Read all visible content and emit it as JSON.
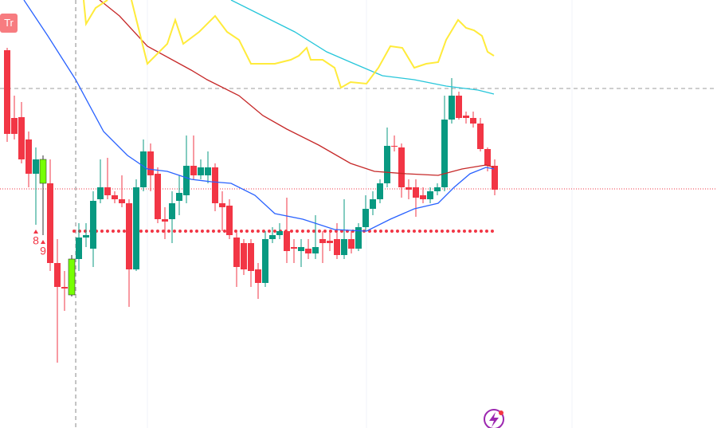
{
  "chart_data": {
    "type": "candlestick",
    "badge": "Tr",
    "xlim": [
      -1,
      99
    ],
    "ylim": [
      0,
      537
    ],
    "up_color": "#089981",
    "down_color": "#f23645",
    "highlight_indices": [
      5,
      9
    ],
    "highlight_color": "#76ff03",
    "open": [
      474,
      389,
      390,
      362,
      319,
      307,
      307,
      207,
      177,
      167,
      212,
      239,
      225,
      287,
      302,
      292,
      287,
      282,
      199,
      302,
      347,
      319,
      262,
      262,
      285,
      292,
      329,
      317,
      317,
      327,
      282,
      279,
      239,
      232,
      232,
      199,
      182,
      237,
      242,
      247,
      227,
      222,
      225,
      219,
      237,
      235,
      237,
      217,
      237,
      225,
      252,
      275,
      287,
      307,
      354,
      352,
      302,
      302,
      292,
      287,
      297,
      302,
      387,
      417,
      392,
      389,
      382,
      350,
      329
    ],
    "close": [
      369,
      369,
      337,
      319,
      337,
      337,
      207,
      177,
      175,
      212,
      239,
      242,
      285,
      302,
      292,
      287,
      282,
      199,
      302,
      347,
      317,
      262,
      259,
      282,
      295,
      329,
      317,
      327,
      327,
      282,
      277,
      242,
      202,
      199,
      197,
      182,
      237,
      242,
      247,
      222,
      225,
      227,
      219,
      227,
      232,
      232,
      217,
      237,
      225,
      252,
      275,
      287,
      307,
      354,
      353,
      302,
      299,
      289,
      287,
      297,
      302,
      387,
      417,
      389,
      389,
      382,
      350,
      329,
      299
    ],
    "high": [
      477,
      417,
      409,
      372,
      352,
      342,
      337,
      237,
      197,
      217,
      257,
      257,
      297,
      337,
      339,
      297,
      317,
      287,
      312,
      362,
      357,
      327,
      277,
      297,
      317,
      367,
      367,
      337,
      347,
      332,
      297,
      287,
      247,
      237,
      237,
      207,
      247,
      252,
      257,
      289,
      237,
      237,
      237,
      267,
      247,
      247,
      257,
      287,
      247,
      257,
      292,
      297,
      312,
      377,
      367,
      357,
      312,
      312,
      302,
      302,
      307,
      417,
      439,
      422,
      397,
      397,
      389,
      352,
      337
    ],
    "low": [
      359,
      362,
      332,
      302,
      255,
      242,
      197,
      82,
      147,
      165,
      197,
      227,
      202,
      282,
      287,
      282,
      277,
      152,
      197,
      297,
      297,
      257,
      237,
      232,
      267,
      282,
      312,
      312,
      307,
      272,
      247,
      237,
      177,
      192,
      177,
      162,
      177,
      232,
      237,
      207,
      207,
      202,
      212,
      212,
      207,
      222,
      212,
      212,
      219,
      222,
      247,
      267,
      282,
      302,
      347,
      289,
      287,
      265,
      282,
      282,
      292,
      297,
      382,
      387,
      382,
      377,
      347,
      322,
      292
    ],
    "annotations": [
      {
        "text": "8",
        "index": 4
      },
      {
        "text": "9",
        "index": 5
      }
    ],
    "lines": [
      {
        "color": "#2962ff",
        "x": [
          2.33,
          5.67,
          9.56,
          13.44,
          16.78,
          19.56,
          22.33,
          25.67,
          28.44,
          31.22,
          34.56,
          37.33,
          41.22,
          45.67,
          50.11,
          53.44,
          56.78,
          60.11,
          62.33,
          64.56,
          66.78,
          67.89
        ],
        "values": [
          537,
          492,
          437,
          372,
          342,
          325,
          322,
          312,
          309,
          307,
          292,
          269,
          262,
          249,
          247,
          262,
          275,
          282,
          302,
          319,
          327,
          325
        ]
      },
      {
        "color": "#c62828",
        "x": [
          12.89,
          15.67,
          19.56,
          25.67,
          27.89,
          32.33,
          35.67,
          39,
          43.44,
          47.89,
          51.22,
          55.67,
          60.11,
          63.44,
          66.78,
          67.89
        ],
        "values": [
          537,
          517,
          479,
          449,
          437,
          417,
          392,
          375,
          355,
          332,
          322,
          319,
          317,
          325,
          330,
          327
        ]
      },
      {
        "color": "#26c6da",
        "x": [
          31.22,
          35.67,
          40.11,
          44.56,
          47.89,
          52.33,
          56.78,
          61.22,
          65.67,
          67.89
        ],
        "values": [
          537,
          517,
          497,
          472,
          459,
          442,
          437,
          429,
          424,
          419
        ]
      },
      {
        "color": "#ffeb3b",
        "x": [
          10.67,
          11,
          12.33,
          14,
          15.5,
          17.33,
          19.56,
          22.33,
          23.44,
          24.56,
          26.78,
          29,
          30.67,
          32.33,
          34,
          35.11,
          37.33,
          39.56,
          40.67,
          41.78,
          42.33,
          44,
          45.67,
          46.56,
          47.89,
          50.11,
          51.78,
          53.44,
          55.11,
          56.78,
          58.44,
          60.11,
          61.22,
          62.89,
          64,
          65.11,
          66.22,
          67,
          67.89
        ],
        "values": [
          537,
          507,
          527,
          537,
          null,
          537,
          457,
          482,
          512,
          482,
          497,
          517,
          497,
          487,
          457,
          457,
          457,
          462,
          467,
          477,
          462,
          462,
          452,
          427,
          434,
          432,
          452,
          479,
          477,
          452,
          457,
          459,
          487,
          512,
          502,
          499,
          492,
          472,
          467
        ]
      }
    ],
    "levels": [
      {
        "value": 247,
        "from": 9.33,
        "to": 67.89,
        "color": "#f23645",
        "style": "dots"
      },
      {
        "value": 300,
        "from": -1,
        "to": 99,
        "color": "#f23645",
        "style": "fine"
      },
      {
        "value": 426,
        "from": -1,
        "to": 99,
        "color": "#9e9e9e",
        "style": "dashed"
      }
    ],
    "crosshair_x": 9.56,
    "xgrid": [
      19.56,
      50.11,
      78.78
    ]
  }
}
